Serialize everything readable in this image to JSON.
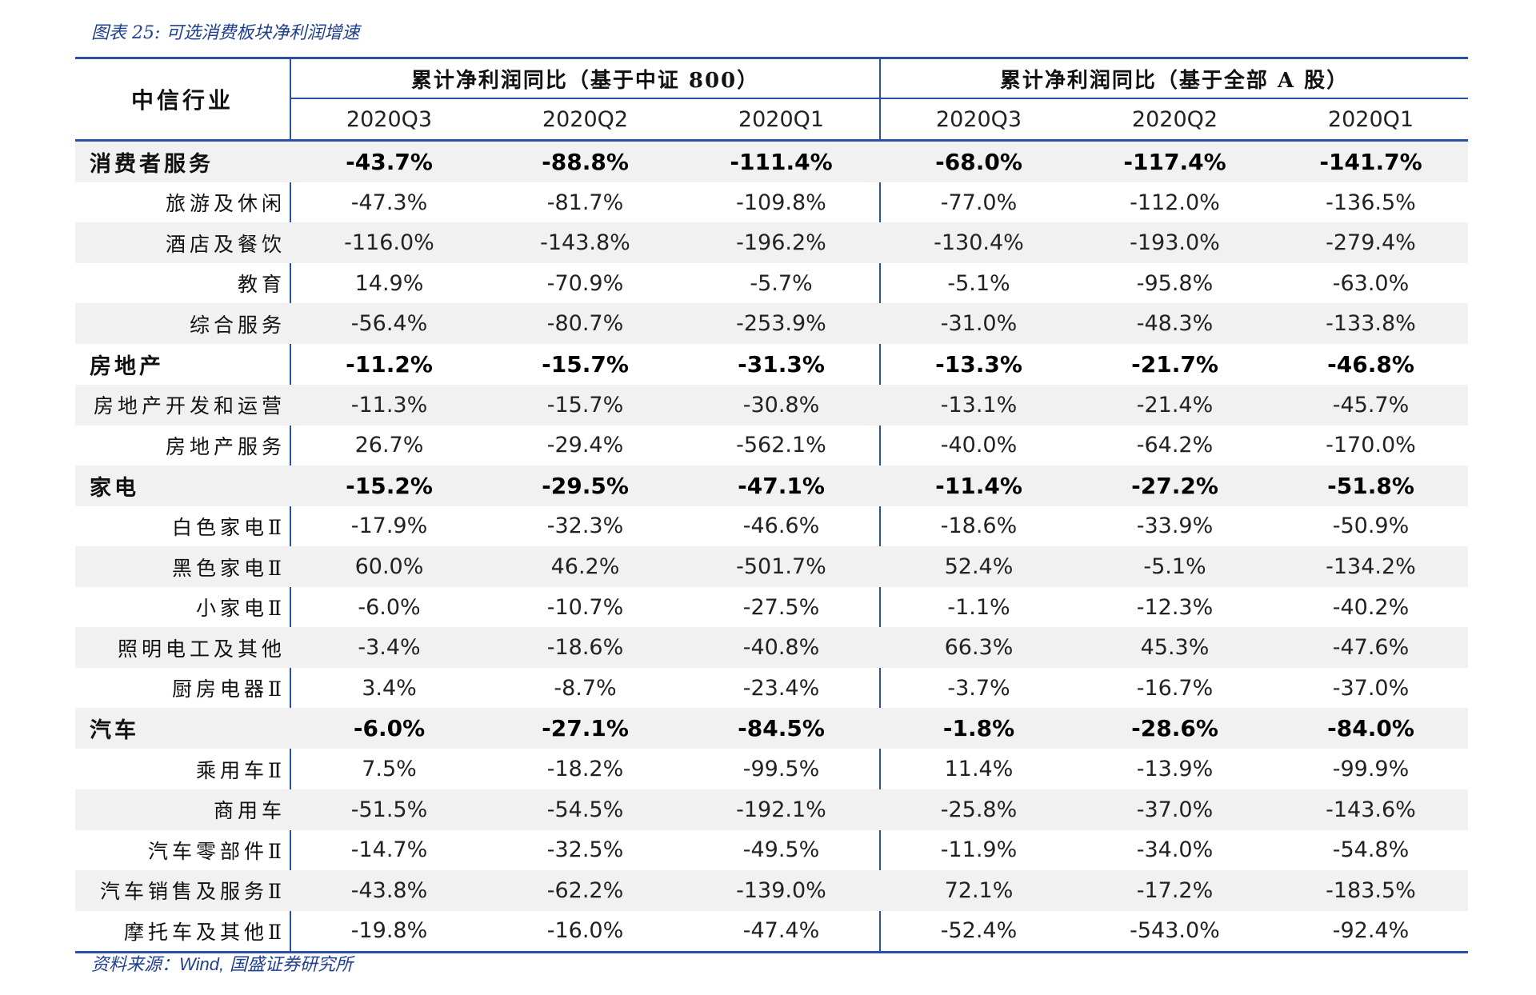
{
  "caption": "图表 25:  可选消费板块净利润增速",
  "source_prefix": "资料来源：",
  "source_wind": "Wind,",
  "source_suffix": " 国盛证券研究所",
  "table": {
    "industry_header": "中信行业",
    "groups": [
      "累计净利润同比（基于中证 800）",
      "累计净利润同比（基于全部 A 股）"
    ],
    "quarters": [
      "2020Q3",
      "2020Q2",
      "2020Q1",
      "2020Q3",
      "2020Q2",
      "2020Q1"
    ],
    "rows": [
      {
        "name": "消费者服务",
        "category": true,
        "values": [
          "-43.7%",
          "-88.8%",
          "-111.4%",
          "-68.0%",
          "-117.4%",
          "-141.7%"
        ]
      },
      {
        "name": "旅游及休闲",
        "category": false,
        "values": [
          "-47.3%",
          "-81.7%",
          "-109.8%",
          "-77.0%",
          "-112.0%",
          "-136.5%"
        ]
      },
      {
        "name": "酒店及餐饮",
        "category": false,
        "values": [
          "-116.0%",
          "-143.8%",
          "-196.2%",
          "-130.4%",
          "-193.0%",
          "-279.4%"
        ]
      },
      {
        "name": "教育",
        "category": false,
        "values": [
          "14.9%",
          "-70.9%",
          "-5.7%",
          "-5.1%",
          "-95.8%",
          "-63.0%"
        ]
      },
      {
        "name": "综合服务",
        "category": false,
        "values": [
          "-56.4%",
          "-80.7%",
          "-253.9%",
          "-31.0%",
          "-48.3%",
          "-133.8%"
        ]
      },
      {
        "name": "房地产",
        "category": true,
        "values": [
          "-11.2%",
          "-15.7%",
          "-31.3%",
          "-13.3%",
          "-21.7%",
          "-46.8%"
        ]
      },
      {
        "name": "房地产开发和运营",
        "category": false,
        "values": [
          "-11.3%",
          "-15.7%",
          "-30.8%",
          "-13.1%",
          "-21.4%",
          "-45.7%"
        ]
      },
      {
        "name": "房地产服务",
        "category": false,
        "values": [
          "26.7%",
          "-29.4%",
          "-562.1%",
          "-40.0%",
          "-64.2%",
          "-170.0%"
        ]
      },
      {
        "name": "家电",
        "category": true,
        "values": [
          "-15.2%",
          "-29.5%",
          "-47.1%",
          "-11.4%",
          "-27.2%",
          "-51.8%"
        ]
      },
      {
        "name": "白色家电Ⅱ",
        "category": false,
        "values": [
          "-17.9%",
          "-32.3%",
          "-46.6%",
          "-18.6%",
          "-33.9%",
          "-50.9%"
        ]
      },
      {
        "name": "黑色家电Ⅱ",
        "category": false,
        "values": [
          "60.0%",
          "46.2%",
          "-501.7%",
          "52.4%",
          "-5.1%",
          "-134.2%"
        ]
      },
      {
        "name": "小家电Ⅱ",
        "category": false,
        "values": [
          "-6.0%",
          "-10.7%",
          "-27.5%",
          "-1.1%",
          "-12.3%",
          "-40.2%"
        ]
      },
      {
        "name": "照明电工及其他",
        "category": false,
        "values": [
          "-3.4%",
          "-18.6%",
          "-40.8%",
          "66.3%",
          "45.3%",
          "-47.6%"
        ]
      },
      {
        "name": "厨房电器Ⅱ",
        "category": false,
        "values": [
          "3.4%",
          "-8.7%",
          "-23.4%",
          "-3.7%",
          "-16.7%",
          "-37.0%"
        ]
      },
      {
        "name": "汽车",
        "category": true,
        "values": [
          "-6.0%",
          "-27.1%",
          "-84.5%",
          "-1.8%",
          "-28.6%",
          "-84.0%"
        ]
      },
      {
        "name": "乘用车Ⅱ",
        "category": false,
        "values": [
          "7.5%",
          "-18.2%",
          "-99.5%",
          "11.4%",
          "-13.9%",
          "-99.9%"
        ]
      },
      {
        "name": "商用车",
        "category": false,
        "values": [
          "-51.5%",
          "-54.5%",
          "-192.1%",
          "-25.8%",
          "-37.0%",
          "-143.6%"
        ]
      },
      {
        "name": "汽车零部件Ⅱ",
        "category": false,
        "values": [
          "-14.7%",
          "-32.5%",
          "-49.5%",
          "-11.9%",
          "-34.0%",
          "-54.8%"
        ]
      },
      {
        "name": "汽车销售及服务Ⅱ",
        "category": false,
        "values": [
          "-43.8%",
          "-62.2%",
          "-139.0%",
          "72.1%",
          "-17.2%",
          "-183.5%"
        ]
      },
      {
        "name": "摩托车及其他Ⅱ",
        "category": false,
        "values": [
          "-19.8%",
          "-16.0%",
          "-47.4%",
          "-52.4%",
          "-543.0%",
          "-92.4%"
        ]
      }
    ]
  }
}
